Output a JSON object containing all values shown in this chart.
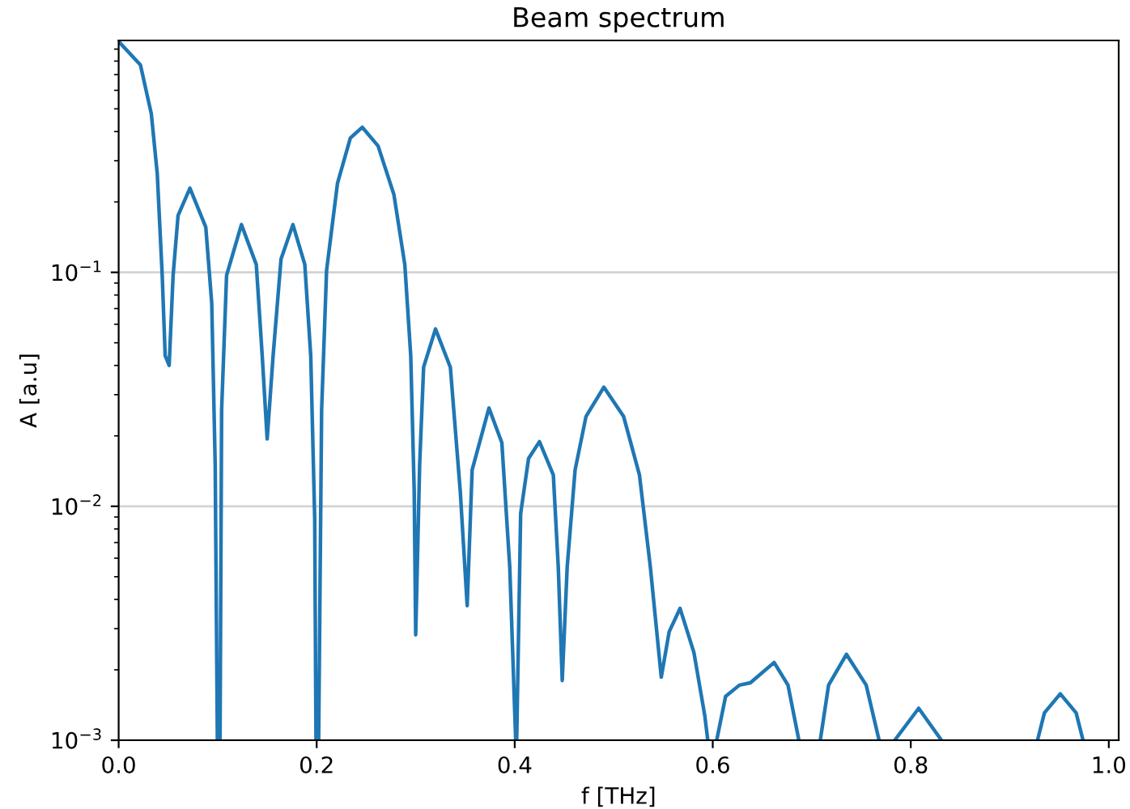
{
  "chart_data": {
    "type": "line",
    "title": "Beam spectrum",
    "xlabel": "f [THz]",
    "ylabel": "A [a.u]",
    "log": "y",
    "grid": "y",
    "marker": "none",
    "line_style": "solid",
    "xlim": [
      0,
      1.01
    ],
    "ylim": [
      0.001,
      0.98
    ],
    "xticks": [
      {
        "value": 0,
        "label": "0.0"
      },
      {
        "value": 0.2,
        "label": "0.2"
      },
      {
        "value": 0.4,
        "label": "0.4"
      },
      {
        "value": 0.6,
        "label": "0.6"
      },
      {
        "value": 0.8,
        "label": "0.8"
      },
      {
        "value": 1,
        "label": "1.0"
      }
    ],
    "yticks": [
      {
        "value": 0.001,
        "label": "10$^{−3}$"
      },
      {
        "value": 0.01,
        "label": "10$^{−2}$"
      },
      {
        "value": 0.1,
        "label": "10$^{−1}$"
      }
    ],
    "series": [
      {
        "color": "#1f77b4",
        "x": [
          0,
          0.022,
          0.033,
          0.039,
          0.044,
          0.047,
          0.051,
          0.055,
          0.06,
          0.072,
          0.088,
          0.094,
          0.0975,
          0.0997,
          0.101,
          0.1024,
          0.104,
          0.109,
          0.124,
          0.139,
          0.145,
          0.15,
          0.156,
          0.164,
          0.176,
          0.188,
          0.194,
          0.198,
          0.1993,
          0.2005,
          0.202,
          0.205,
          0.21,
          0.221,
          0.234,
          0.246,
          0.262,
          0.278,
          0.289,
          0.295,
          0.2985,
          0.3,
          0.304,
          0.308,
          0.32,
          0.335,
          0.345,
          0.352,
          0.357,
          0.374,
          0.387,
          0.395,
          0.401,
          0.4015,
          0.402,
          0.406,
          0.414,
          0.425,
          0.439,
          0.444,
          0.448,
          0.453,
          0.461,
          0.472,
          0.49,
          0.51,
          0.526,
          0.537,
          0.548,
          0.556,
          0.567,
          0.581,
          0.592,
          0.595,
          0.6,
          0.604,
          0.613,
          0.627,
          0.638,
          0.662,
          0.676,
          0.687,
          0.7,
          0.7086,
          0.717,
          0.735,
          0.755,
          0.768,
          0.776,
          0.7838,
          0.808,
          0.831,
          0.88,
          0.928,
          0.935,
          0.951,
          0.967,
          0.974
        ],
        "values": [
          0.97,
          0.77,
          0.476,
          0.264,
          0.097,
          0.044,
          0.04,
          0.097,
          0.175,
          0.229,
          0.156,
          0.074,
          0.0151,
          0.001,
          null,
          0.001,
          0.0258,
          0.097,
          0.16,
          0.108,
          0.044,
          0.0194,
          0.044,
          0.114,
          0.16,
          0.108,
          0.044,
          0.0089,
          0.001,
          null,
          0.001,
          0.0258,
          0.102,
          0.24,
          0.375,
          0.417,
          0.347,
          0.215,
          0.108,
          0.044,
          0.0116,
          0.00282,
          0.0151,
          0.0393,
          0.0573,
          0.0393,
          0.0116,
          0.00376,
          0.0143,
          0.0263,
          0.0187,
          0.0055,
          0.001,
          null,
          0.001,
          0.0093,
          0.016,
          0.0189,
          0.0136,
          0.0055,
          0.0018,
          0.0055,
          0.0143,
          0.0242,
          0.0323,
          0.0242,
          0.0136,
          0.0055,
          0.00186,
          0.00291,
          0.00366,
          0.00237,
          0.00127,
          0.001,
          null,
          0.001,
          0.00154,
          0.00172,
          0.00176,
          0.00215,
          0.00172,
          0.001,
          null,
          0.001,
          0.00172,
          0.00233,
          0.00172,
          0.001,
          null,
          0.001,
          0.00137,
          0.001,
          null,
          0.001,
          0.00131,
          0.00158,
          0.00131,
          0.001
        ]
      }
    ]
  }
}
